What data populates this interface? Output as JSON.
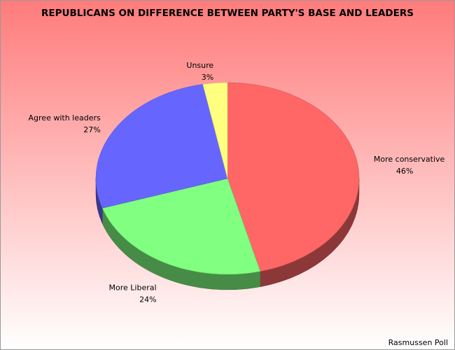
{
  "chart_data": {
    "type": "pie",
    "title": "REPUBLICANS ON DIFFERENCE BETWEEN PARTY'S BASE AND LEADERS",
    "categories": [
      "More conservative",
      "More Liberal",
      "Agree with leaders",
      "Unsure"
    ],
    "values": [
      46,
      24,
      27,
      3
    ],
    "value_labels": [
      "46%",
      "24%",
      "27%",
      "3%"
    ],
    "colors": [
      "#ff6666",
      "#80ff80",
      "#6666ff",
      "#ffff80"
    ],
    "source": "Rasmussen Poll"
  }
}
